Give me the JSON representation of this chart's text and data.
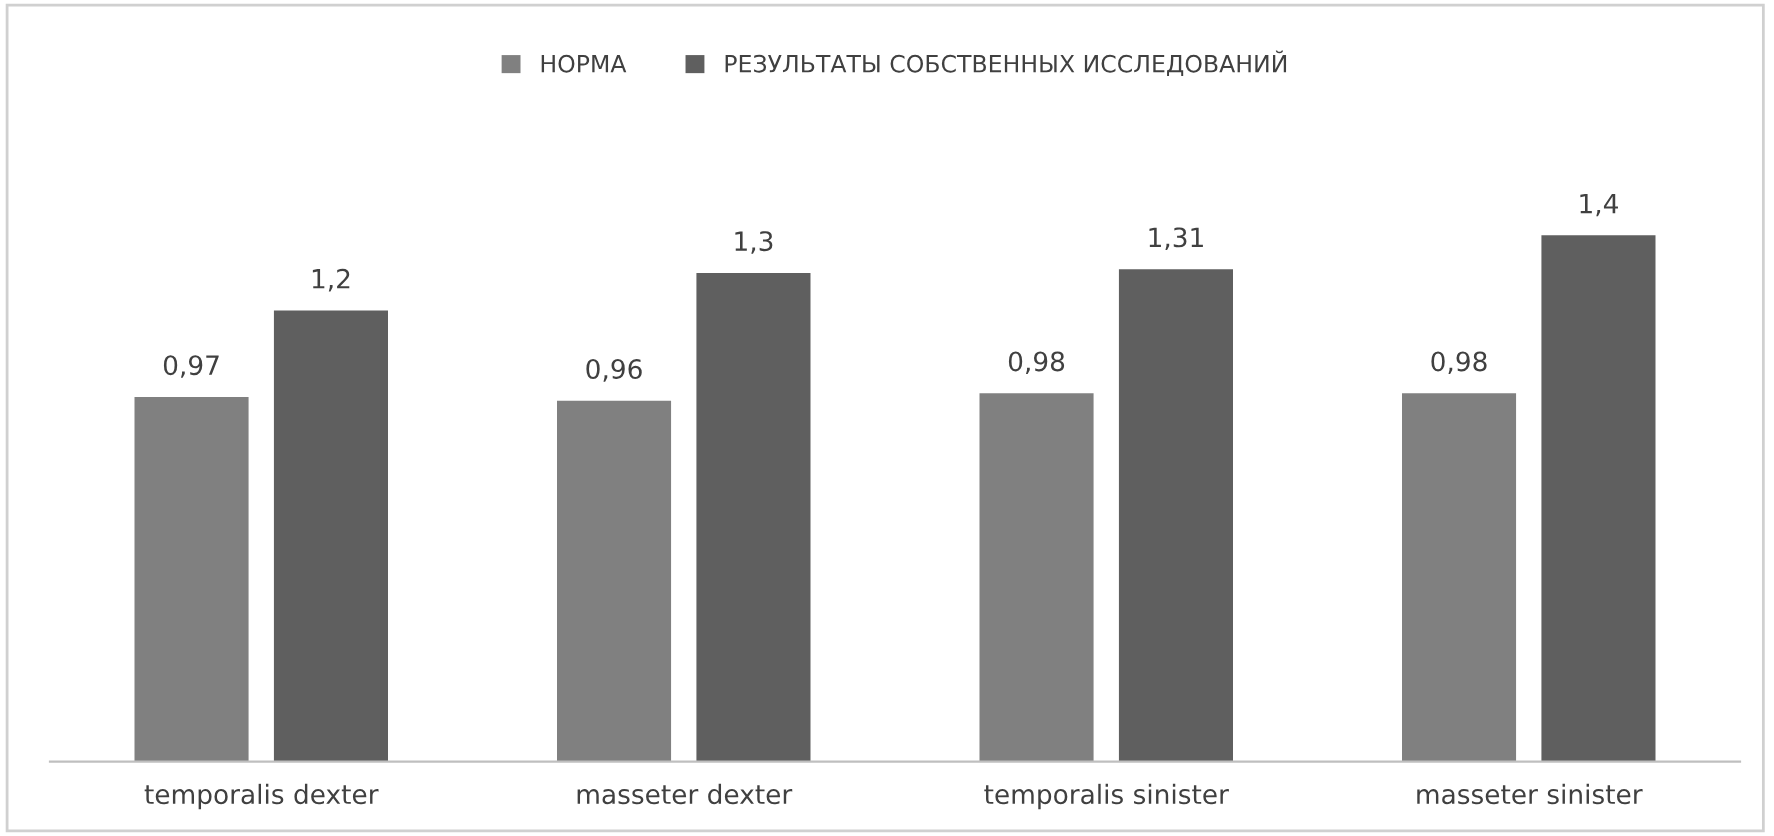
{
  "chart_data": {
    "type": "bar",
    "categories": [
      "temporalis dexter",
      "masseter dexter",
      "temporalis sinister",
      "masseter sinister"
    ],
    "series": [
      {
        "name": "НОРМА",
        "color": "#808080",
        "values": [
          0.97,
          0.96,
          0.98,
          0.98
        ],
        "value_labels": [
          "0,97",
          "0,96",
          "0,98",
          "0,98"
        ]
      },
      {
        "name": "РЕЗУЛЬТАТЫ СОБСТВЕННЫХ ИССЛЕДОВАНИЙ",
        "color": "#5f5f5f",
        "values": [
          1.2,
          1.3,
          1.31,
          1.4
        ],
        "value_labels": [
          "1,2",
          "1,3",
          "1,31",
          "1,4"
        ]
      }
    ],
    "legend": "top",
    "grid": false,
    "tick_labels": "x"
  }
}
